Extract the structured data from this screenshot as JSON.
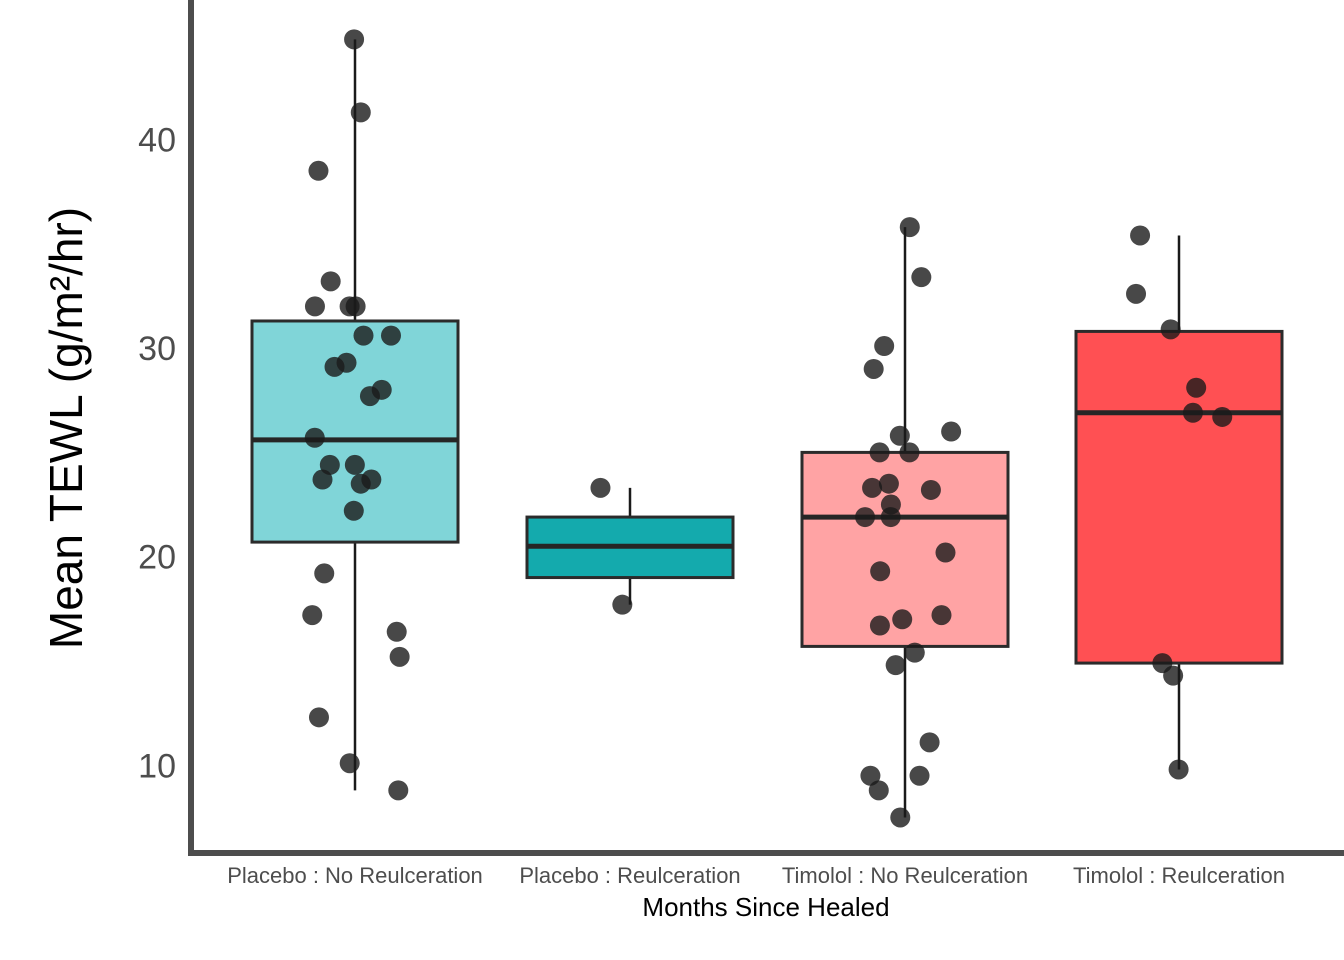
{
  "chart_data": {
    "type": "box",
    "title": "",
    "xlabel": "Months Since Healed",
    "ylabel": "Mean TEWL (g/m²/hr)",
    "ylim": [
      5.6,
      46.4
    ],
    "yticks": [
      10,
      20,
      30,
      40
    ],
    "grid": false,
    "legend": "none",
    "categories": [
      "Placebo : No Reulceration",
      "Placebo : Reulceration",
      "Timolol : No Reulceration",
      "Timolol : Reulceration"
    ],
    "colors": [
      "#80D5D8",
      "#14AAAD",
      "#FFA3A4",
      "#FF5053"
    ],
    "boxes": [
      {
        "q1": 20.7,
        "median": 25.6,
        "q3": 31.3,
        "whisker_low": 8.8,
        "whisker_high": 44.8
      },
      {
        "q1": 19.0,
        "median": 20.5,
        "q3": 21.9,
        "whisker_low": 17.7,
        "whisker_high": 23.3
      },
      {
        "q1": 15.7,
        "median": 21.9,
        "q3": 25.0,
        "whisker_low": 7.5,
        "whisker_high": 35.8
      },
      {
        "q1": 14.9,
        "median": 26.9,
        "q3": 30.8,
        "whisker_low": 9.8,
        "whisker_high": 35.4
      }
    ],
    "points": [
      [
        44.8,
        41.3,
        38.5,
        33.2,
        32.0,
        32.0,
        32.0,
        30.6,
        30.6,
        29.3,
        29.1,
        28.0,
        27.7,
        25.7,
        24.4,
        24.4,
        23.7,
        23.7,
        23.5,
        22.2,
        19.2,
        17.2,
        16.4,
        15.2,
        12.3,
        10.1,
        8.8
      ],
      [
        23.3,
        17.7
      ],
      [
        35.8,
        33.4,
        30.1,
        29.0,
        26.0,
        25.8,
        25.0,
        25.0,
        23.5,
        23.3,
        23.2,
        22.5,
        21.9,
        21.9,
        20.2,
        19.3,
        17.2,
        17.0,
        16.7,
        15.4,
        14.8,
        11.1,
        9.5,
        9.5,
        8.8,
        7.5
      ],
      [
        35.4,
        32.6,
        30.9,
        28.1,
        26.9,
        26.7,
        14.9,
        14.3,
        9.8
      ]
    ]
  }
}
